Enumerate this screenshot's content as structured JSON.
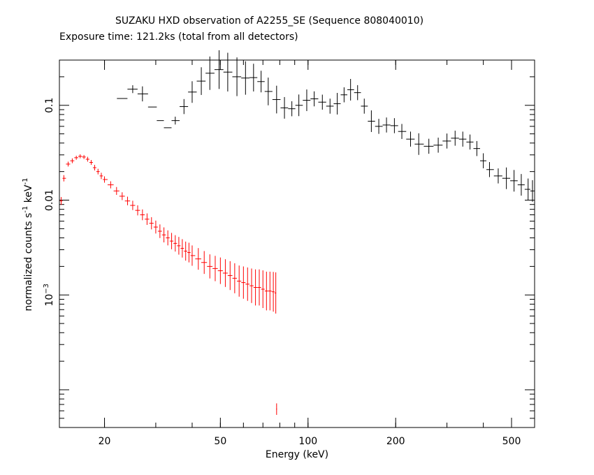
{
  "chart_data": {
    "type": "scatter",
    "title": "SUZAKU HXD observation of A2255_SE (Sequence 808040010)",
    "subtitle": "Exposure time: 121.2ks (total from all detectors)",
    "xlabel": "Energy (keV)",
    "ylabel_prefix": "normalized counts s",
    "ylabel_exp1": "-1",
    "ylabel_mid": " keV",
    "ylabel_exp2": "-1",
    "x_scale": "log",
    "y_scale": "log",
    "xlim": [
      14,
      600
    ],
    "ylim": [
      4e-05,
      0.3
    ],
    "x_ticks": [
      {
        "value": 20,
        "label": "20"
      },
      {
        "value": 50,
        "label": "50"
      },
      {
        "value": 100,
        "label": "100"
      },
      {
        "value": 200,
        "label": "200"
      },
      {
        "value": 500,
        "label": "500"
      }
    ],
    "y_ticks": [
      {
        "value": 0.1,
        "label": "0.1"
      },
      {
        "value": 0.01,
        "label": "0.01"
      },
      {
        "value": 0.001,
        "label": "10",
        "exp": "−3"
      }
    ],
    "grid": false,
    "legend": "none",
    "series": [
      {
        "color": "#000000",
        "style": "black-spectrum",
        "points": [
          [
            23.0,
            0.118,
            1.0
          ],
          [
            25.0,
            0.148,
            1.1
          ],
          [
            27.0,
            0.132,
            1.2
          ],
          [
            29.5,
            0.096,
            1.0
          ],
          [
            31.0,
            0.069,
            1.0
          ],
          [
            33.0,
            0.058,
            1.0
          ],
          [
            35.0,
            0.069,
            1.1
          ],
          [
            37.5,
            0.097,
            1.2
          ],
          [
            40.0,
            0.138,
            1.3
          ],
          [
            43.0,
            0.18,
            1.4
          ],
          [
            46.0,
            0.218,
            1.5
          ],
          [
            49.5,
            0.238,
            1.6
          ],
          [
            53.0,
            0.224,
            1.6
          ],
          [
            57.0,
            0.2,
            1.6
          ],
          [
            61.0,
            0.194,
            1.5
          ],
          [
            65.0,
            0.196,
            1.4
          ],
          [
            69.0,
            0.178,
            1.3
          ],
          [
            73.0,
            0.14,
            1.4
          ],
          [
            78.0,
            0.115,
            1.4
          ],
          [
            83.0,
            0.094,
            1.3
          ],
          [
            88.0,
            0.092,
            1.2
          ],
          [
            93.0,
            0.1,
            1.3
          ],
          [
            99.0,
            0.113,
            1.3
          ],
          [
            105.0,
            0.117,
            1.2
          ],
          [
            112.0,
            0.108,
            1.2
          ],
          [
            119.0,
            0.098,
            1.2
          ],
          [
            126.0,
            0.104,
            1.3
          ],
          [
            133.0,
            0.129,
            1.2
          ],
          [
            140.0,
            0.146,
            1.3
          ],
          [
            148.0,
            0.136,
            1.2
          ],
          [
            156.0,
            0.098,
            1.2
          ],
          [
            165.0,
            0.068,
            1.3
          ],
          [
            175.0,
            0.06,
            1.2
          ],
          [
            186.0,
            0.062,
            1.2
          ],
          [
            198.0,
            0.061,
            1.2
          ],
          [
            210.0,
            0.053,
            1.2
          ],
          [
            225.0,
            0.044,
            1.2
          ],
          [
            240.0,
            0.039,
            1.3
          ],
          [
            260.0,
            0.037,
            1.2
          ],
          [
            280.0,
            0.038,
            1.2
          ],
          [
            300.0,
            0.042,
            1.2
          ],
          [
            320.0,
            0.045,
            1.2
          ],
          [
            340.0,
            0.044,
            1.2
          ],
          [
            360.0,
            0.041,
            1.2
          ],
          [
            380.0,
            0.035,
            1.2
          ],
          [
            400.0,
            0.026,
            1.2
          ],
          [
            420.0,
            0.021,
            1.2
          ],
          [
            450.0,
            0.018,
            1.2
          ],
          [
            480.0,
            0.017,
            1.3
          ],
          [
            510.0,
            0.016,
            1.3
          ],
          [
            540.0,
            0.0145,
            1.3
          ],
          [
            570.0,
            0.013,
            1.3
          ],
          [
            590.0,
            0.0125,
            1.3
          ]
        ]
      },
      {
        "color": "#ff0000",
        "style": "red-spectrum",
        "points": [
          [
            14.2,
            0.0098,
            1.1
          ],
          [
            14.5,
            0.017,
            1.08
          ],
          [
            15.0,
            0.024,
            1.06
          ],
          [
            15.5,
            0.026,
            1.06
          ],
          [
            16.0,
            0.028,
            1.05
          ],
          [
            16.5,
            0.029,
            1.05
          ],
          [
            17.0,
            0.0285,
            1.05
          ],
          [
            17.5,
            0.027,
            1.06
          ],
          [
            18.0,
            0.025,
            1.06
          ],
          [
            18.5,
            0.022,
            1.07
          ],
          [
            19.0,
            0.02,
            1.07
          ],
          [
            19.5,
            0.018,
            1.08
          ],
          [
            20.0,
            0.0165,
            1.08
          ],
          [
            21.0,
            0.0145,
            1.09
          ],
          [
            22.0,
            0.0125,
            1.1
          ],
          [
            23.0,
            0.011,
            1.1
          ],
          [
            24.0,
            0.0098,
            1.11
          ],
          [
            25.0,
            0.0088,
            1.12
          ],
          [
            26.0,
            0.0078,
            1.13
          ],
          [
            27.0,
            0.007,
            1.14
          ],
          [
            28.0,
            0.0063,
            1.15
          ],
          [
            29.0,
            0.0057,
            1.16
          ],
          [
            30.0,
            0.0052,
            1.17
          ],
          [
            31.0,
            0.0047,
            1.18
          ],
          [
            32.0,
            0.0043,
            1.2
          ],
          [
            33.0,
            0.004,
            1.2
          ],
          [
            34.0,
            0.0037,
            1.22
          ],
          [
            35.0,
            0.0035,
            1.22
          ],
          [
            36.0,
            0.0033,
            1.24
          ],
          [
            37.0,
            0.0031,
            1.25
          ],
          [
            38.0,
            0.0029,
            1.26
          ],
          [
            39.0,
            0.0028,
            1.27
          ],
          [
            40.0,
            0.0026,
            1.28
          ],
          [
            42.0,
            0.0024,
            1.3
          ],
          [
            44.0,
            0.0022,
            1.32
          ],
          [
            46.0,
            0.002,
            1.34
          ],
          [
            48.0,
            0.0019,
            1.36
          ],
          [
            50.0,
            0.0018,
            1.38
          ],
          [
            52.0,
            0.0017,
            1.4
          ],
          [
            54.0,
            0.0016,
            1.42
          ],
          [
            56.0,
            0.0015,
            1.44
          ],
          [
            58.0,
            0.0014,
            1.46
          ],
          [
            60.0,
            0.00135,
            1.48
          ],
          [
            62.0,
            0.0013,
            1.5
          ],
          [
            64.0,
            0.00125,
            1.52
          ],
          [
            66.0,
            0.0012,
            1.55
          ],
          [
            68.0,
            0.0012,
            1.55
          ],
          [
            70.0,
            0.00115,
            1.58
          ],
          [
            72.0,
            0.0011,
            1.6
          ],
          [
            74.0,
            0.0011,
            1.6
          ],
          [
            76.0,
            0.00108,
            1.62
          ],
          [
            77.5,
            0.00105,
            1.65
          ],
          [
            78.0,
            6.25e-05,
            1.15
          ]
        ]
      }
    ]
  }
}
